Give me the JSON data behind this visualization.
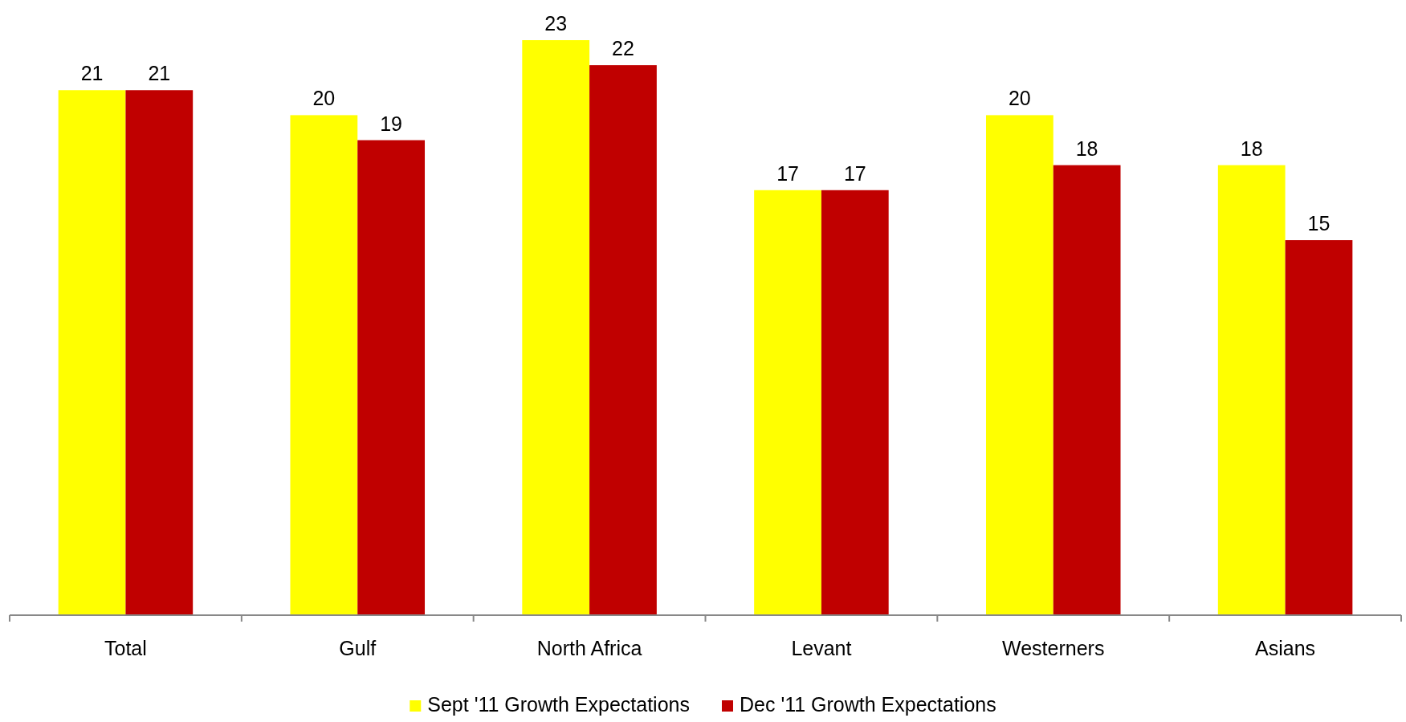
{
  "chart_data": {
    "type": "bar",
    "categories": [
      "Total",
      "Gulf",
      "North Africa",
      "Levant",
      "Westerners",
      "Asians"
    ],
    "series": [
      {
        "name": "Sept '11 Growth Expectations",
        "color": "#ffff00",
        "values": [
          21,
          20,
          23,
          17,
          20,
          18
        ]
      },
      {
        "name": "Dec '11 Growth Expectations",
        "color": "#c00000",
        "values": [
          21,
          19,
          22,
          17,
          18,
          15
        ]
      }
    ],
    "data_labels": true,
    "legend": "bottom"
  }
}
